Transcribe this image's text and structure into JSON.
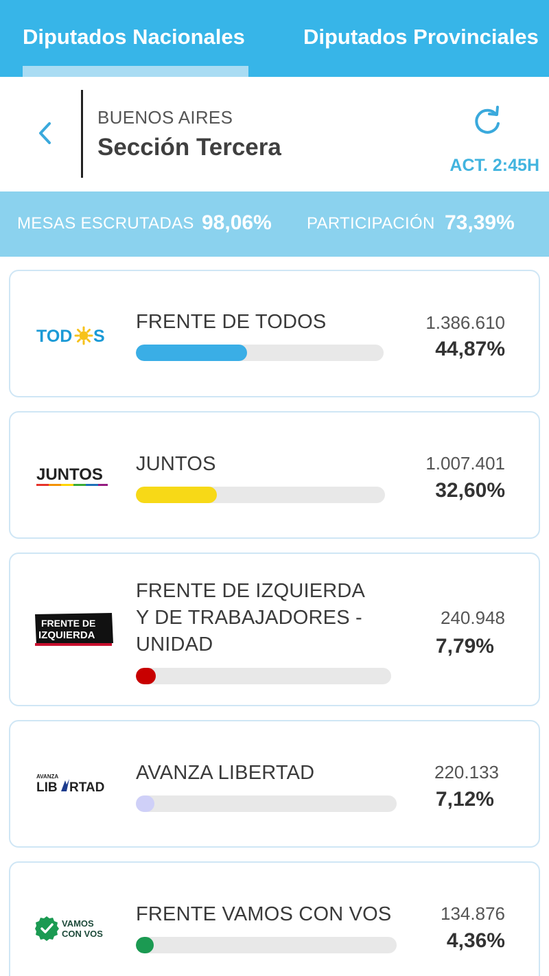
{
  "tabs": {
    "national": "Diputados Nacionales",
    "provincial": "Diputados Provinciales"
  },
  "header": {
    "region": "BUENOS AIRES",
    "section": "Sección Tercera",
    "updated": "ACT. 2:45H"
  },
  "stats": {
    "mesas_label": "MESAS ESCRUTADAS",
    "mesas_value": "98,06%",
    "participacion_label": "PARTICIPACIÓN",
    "participacion_value": "73,39%"
  },
  "parties": [
    {
      "logo_text": "TODOS",
      "name": "FRENTE DE TODOS",
      "votes": "1.386.610",
      "percent": "44,87%",
      "bar_fraction": 0.4487,
      "color": "#3aaee6"
    },
    {
      "logo_text": "JUNTOS",
      "name": "JUNTOS",
      "votes": "1.007.401",
      "percent": "32,60%",
      "bar_fraction": 0.326,
      "color": "#f7d917"
    },
    {
      "logo_text": "FRENTE DE IZQUIERDA",
      "name": "FRENTE DE IZQUIERDA Y DE TRABAJADORES - UNIDAD",
      "name_lines": [
        "FRENTE DE IZQUIERDA",
        "Y DE TRABAJADORES -",
        "UNIDAD"
      ],
      "votes": "240.948",
      "percent": "7,79%",
      "bar_fraction": 0.0779,
      "color": "#c80000"
    },
    {
      "logo_text": "AVANZA LIBERTAD",
      "name": "AVANZA LIBERTAD",
      "votes": "220.133",
      "percent": "7,12%",
      "bar_fraction": 0.0712,
      "color": "#cfd0f8"
    },
    {
      "logo_text": "VAMOS CON VOS",
      "name": "FRENTE VAMOS CON VOS",
      "votes": "134.876",
      "percent": "4,36%",
      "bar_fraction": 0.0436,
      "color": "#1b9a52"
    }
  ],
  "icons": {
    "back": "chevron-left-icon",
    "refresh": "refresh-icon"
  },
  "colors": {
    "primary": "#37b5e8",
    "stats_bg": "#8bd2ee",
    "accent_text": "#42b4df"
  }
}
